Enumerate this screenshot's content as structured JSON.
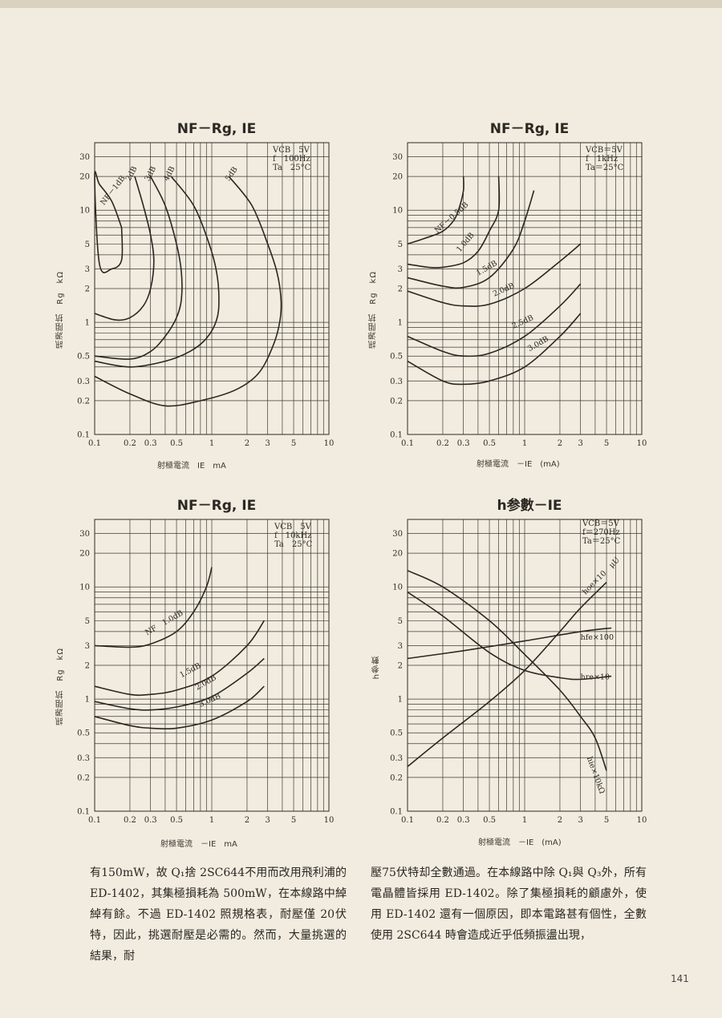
{
  "page": {
    "number": "141",
    "body_left": "有150mW，故 Q₁捨 2SC644不用而改用飛利浦的ED-1402，其集極損耗為 500mW，在本線路中綽綽有餘。不過 ED-1402 照規格表，耐壓僅 20伏特，因此，挑選耐壓是必需的。然而，大量挑選的結果，耐",
    "body_right": "壓75伏特却全數通過。在本線路中除 Q₁與 Q₃外，所有電晶體皆採用 ED-1402。除了集極損耗的顧慮外，使用 ED-1402 還有一個原因，即本電路甚有個性，全數使用 2SC644 時會造成近乎低頻振盪出現，"
  },
  "charts": [
    {
      "title": "NF－Rg, IE",
      "ylabel": "訊源阻抗　Rg　kΩ",
      "xlabel": "射極電流　IE　mA",
      "conditions": [
        "VCB　5V",
        "f　100Hz",
        "Ta　25°C"
      ],
      "curve_labels": [
        "NF－1dB",
        "2dB",
        "3dB",
        "4dB",
        "5dB"
      ]
    },
    {
      "title": "NF－Rg, IE",
      "ylabel": "訊源阻抗　Rg　kΩ",
      "xlabel": "射極電流　－IE　(mA)",
      "conditions": [
        "VCB＝5V",
        "f　1kHz",
        "Ta＝25°C"
      ],
      "curve_labels": [
        "NF－0.5dB",
        "1.0dB",
        "1.5dB",
        "2.0dB",
        "2.5dB",
        "3.0dB"
      ]
    },
    {
      "title": "NF－Rg, IE",
      "ylabel": "訊源阻抗　Rg　kΩ",
      "xlabel": "射極電流　－IE　mA",
      "conditions": [
        "VCB　5V",
        "f　10kHz",
        "Ta　25°C"
      ],
      "curve_labels": [
        "NF　1.0dB",
        "1.5dB",
        "2.0dB",
        "3.0dB"
      ]
    },
    {
      "title": "h参數－IE",
      "ylabel": "h参數",
      "xlabel": "射極電流　－IE　(mA)",
      "conditions": [
        "VCB＝5V",
        "f＝270Hz",
        "Ta＝25°C"
      ],
      "curve_labels": [
        "hoe×10　μU",
        "hfe×100",
        "hre×10",
        "hie×10kΩ"
      ]
    }
  ],
  "axes": {
    "x_ticks": [
      "0.1",
      "0.2",
      "0.3",
      "0.5",
      "1",
      "2",
      "3",
      "5",
      "10"
    ],
    "y_ticks": [
      "0.1",
      "0.2",
      "0.3",
      "0.5",
      "1",
      "2",
      "3",
      "5",
      "10",
      "20",
      "30"
    ]
  },
  "chart_data": [
    {
      "type": "line",
      "title": "NF－Rg, IE",
      "xlabel": "射極電流 IE mA",
      "ylabel": "訊源阻抗 Rg kΩ",
      "x_scale": "log",
      "y_scale": "log",
      "xlim": [
        0.1,
        10
      ],
      "ylim": [
        0.1,
        40
      ],
      "series": [
        {
          "name": "NF－1dB",
          "x": [
            0.17,
            0.14,
            0.11,
            0.1,
            0.11,
            0.14,
            0.17,
            0.17
          ],
          "y": [
            7.0,
            12,
            17,
            20,
            3.3,
            3.0,
            3.6,
            7.0
          ]
        },
        {
          "name": "2dB",
          "x": [
            0.22,
            0.26,
            0.3,
            0.32,
            0.3,
            0.26,
            0.2,
            0.15,
            0.1
          ],
          "y": [
            20,
            11,
            6,
            3.5,
            2.0,
            1.4,
            1.1,
            1.05,
            1.2
          ]
        },
        {
          "name": "3dB",
          "x": [
            0.3,
            0.4,
            0.5,
            0.55,
            0.55,
            0.5,
            0.4,
            0.3,
            0.2,
            0.1
          ],
          "y": [
            20,
            11,
            5,
            2.8,
            1.6,
            1.1,
            0.75,
            0.55,
            0.47,
            0.5
          ]
        },
        {
          "name": "4dB",
          "x": [
            0.45,
            0.7,
            0.95,
            1.1,
            1.15,
            1.1,
            0.9,
            0.65,
            0.4,
            0.2,
            0.1
          ],
          "y": [
            20,
            11,
            5,
            2.8,
            1.6,
            1.05,
            0.72,
            0.55,
            0.45,
            0.4,
            0.45
          ]
        },
        {
          "name": "5dB",
          "x": [
            1.4,
            2.2,
            3.0,
            3.6,
            3.9,
            3.8,
            3.3,
            2.5,
            1.6,
            0.8,
            0.4,
            0.2,
            0.1
          ],
          "y": [
            20,
            11,
            5,
            2.8,
            1.6,
            1.0,
            0.6,
            0.35,
            0.25,
            0.2,
            0.18,
            0.23,
            0.33
          ]
        }
      ]
    },
    {
      "type": "line",
      "title": "NF－Rg, IE",
      "xlabel": "射極電流 －IE (mA)",
      "ylabel": "訊源阻抗 Rg kΩ",
      "x_scale": "log",
      "y_scale": "log",
      "xlim": [
        0.1,
        10
      ],
      "ylim": [
        0.1,
        40
      ],
      "series": [
        {
          "name": "NF－0.5dB",
          "x": [
            0.1,
            0.14,
            0.2,
            0.25,
            0.28,
            0.3,
            0.3
          ],
          "y": [
            5.0,
            5.6,
            6.5,
            8.2,
            11,
            15,
            20
          ]
        },
        {
          "name": "1.0dB",
          "x": [
            0.1,
            0.15,
            0.2,
            0.3,
            0.4,
            0.5,
            0.6,
            0.6
          ],
          "y": [
            3.3,
            3.1,
            3.1,
            3.4,
            4.3,
            6.5,
            10,
            20
          ]
        },
        {
          "name": "1.5dB",
          "x": [
            0.1,
            0.2,
            0.3,
            0.5,
            0.8,
            1.0,
            1.2
          ],
          "y": [
            2.5,
            2.1,
            2.05,
            2.5,
            4.5,
            8.0,
            15
          ]
        },
        {
          "name": "2.0dB",
          "x": [
            0.1,
            0.2,
            0.3,
            0.5,
            1.0,
            2.0,
            3.0
          ],
          "y": [
            1.9,
            1.5,
            1.4,
            1.45,
            2.0,
            3.5,
            5.0
          ]
        },
        {
          "name": "2.5dB",
          "x": [
            0.1,
            0.2,
            0.3,
            0.5,
            1.0,
            2.0,
            3.0
          ],
          "y": [
            0.75,
            0.55,
            0.5,
            0.53,
            0.75,
            1.4,
            2.2
          ]
        },
        {
          "name": "3.0dB",
          "x": [
            0.1,
            0.2,
            0.3,
            0.5,
            1.0,
            2.0,
            3.0
          ],
          "y": [
            0.45,
            0.3,
            0.28,
            0.3,
            0.4,
            0.75,
            1.2
          ]
        }
      ]
    },
    {
      "type": "line",
      "title": "NF－Rg, IE",
      "xlabel": "射極電流 －IE mA",
      "ylabel": "訊源阻抗 Rg kΩ",
      "x_scale": "log",
      "y_scale": "log",
      "xlim": [
        0.1,
        10
      ],
      "ylim": [
        0.1,
        40
      ],
      "series": [
        {
          "name": "NF 1.0dB",
          "x": [
            0.1,
            0.2,
            0.3,
            0.5,
            0.7,
            0.9,
            1.0
          ],
          "y": [
            3.0,
            2.9,
            3.1,
            4.0,
            6.0,
            10,
            15
          ]
        },
        {
          "name": "1.5dB",
          "x": [
            0.1,
            0.2,
            0.3,
            0.5,
            1.0,
            2.0,
            2.8
          ],
          "y": [
            1.3,
            1.1,
            1.1,
            1.2,
            1.6,
            3.0,
            5.0
          ]
        },
        {
          "name": "2.0dB",
          "x": [
            0.1,
            0.2,
            0.3,
            0.5,
            1.0,
            2.0,
            2.8
          ],
          "y": [
            0.95,
            0.82,
            0.8,
            0.85,
            1.05,
            1.7,
            2.3
          ]
        },
        {
          "name": "3.0dB",
          "x": [
            0.1,
            0.2,
            0.3,
            0.5,
            1.0,
            2.0,
            2.8
          ],
          "y": [
            0.7,
            0.58,
            0.55,
            0.55,
            0.65,
            0.95,
            1.3
          ]
        }
      ]
    },
    {
      "type": "line",
      "title": "h参數－IE",
      "xlabel": "射極電流 －IE (mA)",
      "ylabel": "h参數",
      "x_scale": "log",
      "y_scale": "log",
      "xlim": [
        0.1,
        10
      ],
      "ylim": [
        0.1,
        40
      ],
      "series": [
        {
          "name": "hoe×10 μU",
          "x": [
            0.1,
            0.2,
            0.5,
            1.0,
            2.0,
            3.0,
            5.0
          ],
          "y": [
            0.25,
            0.45,
            0.95,
            1.8,
            4.0,
            6.5,
            11
          ]
        },
        {
          "name": "hfe×100",
          "x": [
            0.1,
            0.3,
            1.0,
            3.0,
            5.5
          ],
          "y": [
            2.3,
            2.7,
            3.3,
            4.0,
            4.3
          ]
        },
        {
          "name": "hre×10",
          "x": [
            0.1,
            0.2,
            0.5,
            1.0,
            2.0,
            3.0,
            5.5
          ],
          "y": [
            9.0,
            5.5,
            2.6,
            1.8,
            1.55,
            1.5,
            1.6
          ]
        },
        {
          "name": "hie×10kΩ",
          "x": [
            0.1,
            0.2,
            0.5,
            1.0,
            2.0,
            3.0,
            4.0,
            5.0
          ],
          "y": [
            14,
            10,
            5.0,
            2.5,
            1.2,
            0.7,
            0.45,
            0.23
          ]
        }
      ]
    }
  ]
}
